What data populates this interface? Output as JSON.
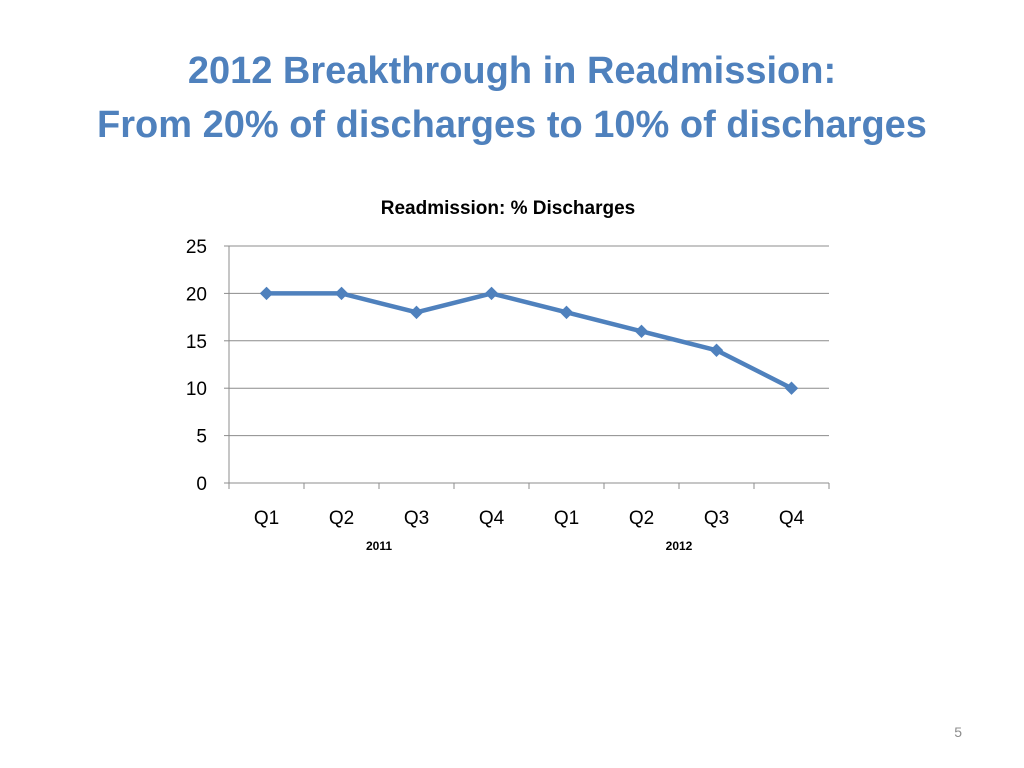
{
  "slide": {
    "title_line1": "2012 Breakthrough in Readmission:",
    "title_line2": "From 20% of discharges to 10% of discharges",
    "page_number": "5"
  },
  "colors": {
    "title": "#4f81bd",
    "series": "#4f81bd",
    "grid": "#8c8c8c",
    "text": "#000000"
  },
  "chart_data": {
    "type": "line",
    "title": "Readmission: % Discharges",
    "categories": [
      "Q1",
      "Q2",
      "Q3",
      "Q4",
      "Q1",
      "Q2",
      "Q3",
      "Q4"
    ],
    "category_groups": [
      {
        "label": "2011",
        "from": 0,
        "to": 3
      },
      {
        "label": "2012",
        "from": 4,
        "to": 7
      }
    ],
    "series": [
      {
        "values": [
          20,
          20,
          18,
          20,
          18,
          16,
          14,
          10
        ],
        "marker": "diamond"
      }
    ],
    "ylim": [
      0,
      25
    ],
    "yticks": [
      0,
      5,
      10,
      15,
      20,
      25
    ],
    "grid": true,
    "legend": "none"
  }
}
